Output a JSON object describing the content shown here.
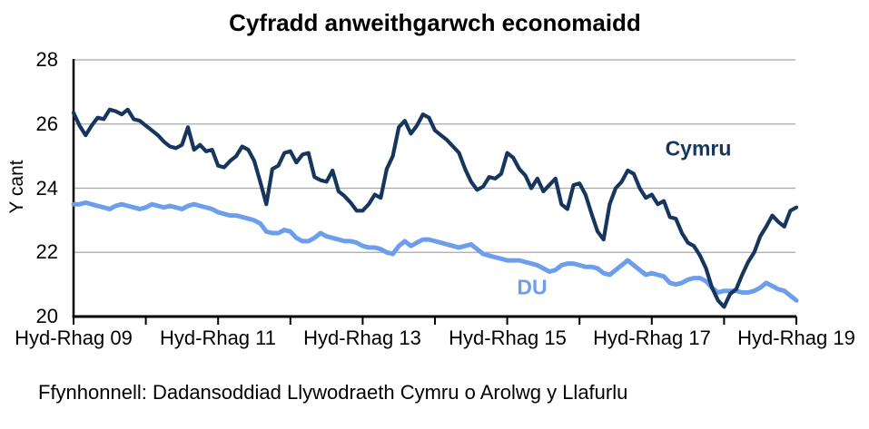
{
  "page": {
    "background": "#FFFFFF"
  },
  "chart_data": {
    "type": "line",
    "title": "Cyfradd anweithgarwch economaidd",
    "ylabel": "Y cant",
    "ylim": [
      20,
      28
    ],
    "y_tick_labels": [
      "28",
      "26",
      "24",
      "22",
      "20"
    ],
    "y_gridlines_at": [
      28,
      26,
      24,
      22
    ],
    "x_tick_labels": [
      "Hyd-Rhag 09",
      "Hyd-Rhag 11",
      "Hyd-Rhag 13",
      "Hyd-Rhag 15",
      "Hyd-Rhag 17",
      "Hyd-Rhag 19"
    ],
    "x_minor_tick_interval_months": 12,
    "x_label_interval_months": 24,
    "grid": "horizontal",
    "legend_position": "inline-labels-on-plot",
    "axis_color": "#000000",
    "gridline_color": "#A8A8A8",
    "source": "Ffynhonnell: Dadansoddiad Llywodraeth Cymru o Arolwg y Llafurlu",
    "series": [
      {
        "name": "DU",
        "color": "#6D9EEB",
        "values": [
          23.5,
          23.5,
          23.55,
          23.5,
          23.45,
          23.4,
          23.35,
          23.45,
          23.5,
          23.45,
          23.4,
          23.35,
          23.4,
          23.5,
          23.45,
          23.4,
          23.45,
          23.4,
          23.35,
          23.45,
          23.5,
          23.45,
          23.4,
          23.35,
          23.25,
          23.2,
          23.15,
          23.15,
          23.1,
          23.05,
          23.0,
          22.9,
          22.65,
          22.6,
          22.6,
          22.7,
          22.65,
          22.45,
          22.35,
          22.35,
          22.45,
          22.6,
          22.5,
          22.45,
          22.4,
          22.35,
          22.35,
          22.3,
          22.2,
          22.15,
          22.15,
          22.1,
          22.0,
          21.95,
          22.2,
          22.35,
          22.2,
          22.3,
          22.4,
          22.4,
          22.35,
          22.3,
          22.25,
          22.2,
          22.15,
          22.2,
          22.25,
          22.1,
          21.95,
          21.9,
          21.85,
          21.8,
          21.75,
          21.75,
          21.75,
          21.7,
          21.65,
          21.6,
          21.5,
          21.4,
          21.45,
          21.6,
          21.65,
          21.65,
          21.6,
          21.55,
          21.55,
          21.5,
          21.35,
          21.3,
          21.45,
          21.6,
          21.75,
          21.6,
          21.45,
          21.3,
          21.35,
          21.3,
          21.25,
          21.05,
          21.0,
          21.05,
          21.15,
          21.2,
          21.2,
          21.1,
          20.9,
          20.75,
          20.8,
          20.8,
          20.8,
          20.75,
          20.75,
          20.8,
          20.9,
          21.05,
          20.95,
          20.85,
          20.8,
          20.65,
          20.5
        ]
      },
      {
        "name": "Cymru",
        "color": "#17365D",
        "values": [
          26.35,
          25.95,
          25.65,
          25.95,
          26.2,
          26.15,
          26.45,
          26.4,
          26.3,
          26.45,
          26.15,
          26.1,
          25.95,
          25.8,
          25.65,
          25.45,
          25.3,
          25.25,
          25.35,
          25.9,
          25.2,
          25.35,
          25.15,
          25.2,
          24.7,
          24.65,
          24.85,
          25.0,
          25.3,
          25.2,
          24.85,
          24.2,
          23.5,
          24.6,
          24.7,
          25.1,
          25.15,
          24.8,
          25.05,
          25.1,
          24.35,
          24.25,
          24.2,
          24.55,
          23.9,
          23.75,
          23.55,
          23.3,
          23.3,
          23.5,
          23.8,
          23.7,
          24.6,
          25.0,
          25.9,
          26.1,
          25.7,
          25.95,
          26.3,
          26.2,
          25.8,
          25.65,
          25.5,
          25.3,
          25.1,
          24.6,
          24.2,
          23.95,
          24.05,
          24.35,
          24.3,
          24.45,
          25.1,
          24.95,
          24.6,
          24.4,
          24.0,
          24.3,
          23.9,
          24.1,
          24.3,
          23.5,
          23.35,
          24.1,
          24.15,
          23.8,
          23.2,
          22.65,
          22.4,
          23.5,
          24.0,
          24.2,
          24.55,
          24.45,
          24.0,
          23.7,
          23.8,
          23.5,
          23.6,
          23.1,
          23.05,
          22.6,
          22.3,
          22.2,
          21.9,
          21.5,
          20.9,
          20.5,
          20.3,
          20.7,
          20.85,
          21.3,
          21.7,
          22.0,
          22.5,
          22.8,
          23.15,
          22.95,
          22.8,
          23.3,
          23.4
        ]
      }
    ]
  }
}
